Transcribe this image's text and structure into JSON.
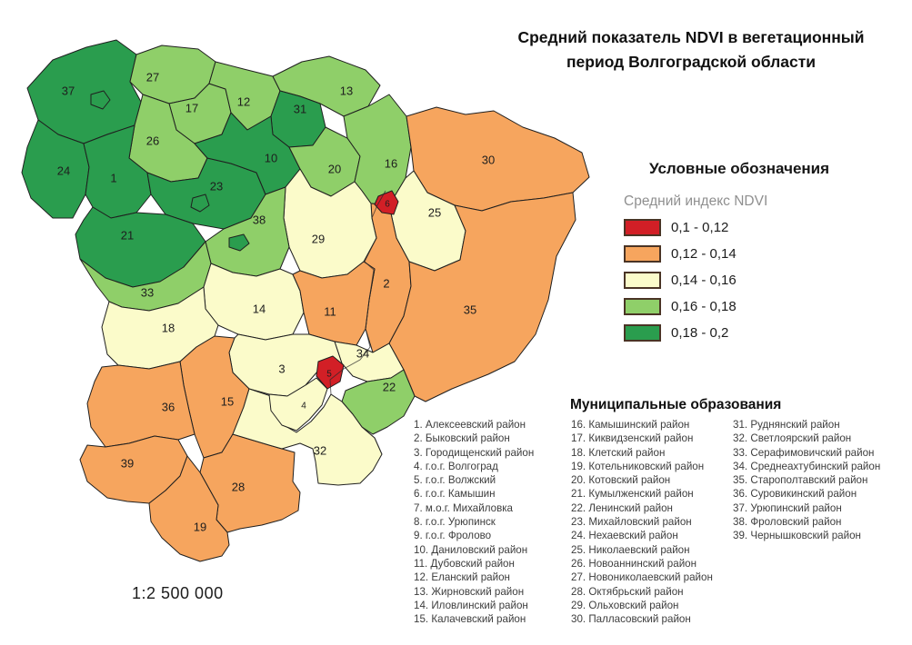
{
  "title": {
    "line1": "Средний показатель NDVI в вегетационный",
    "line2": "период Волгоградской области"
  },
  "legend": {
    "heading": "Условные обозначения",
    "subheading": "Средний индекс NDVI",
    "classes": [
      {
        "label": "0,1 - 0,12",
        "color": "#d21f26"
      },
      {
        "label": "0,12 - 0,14",
        "color": "#f6a55e"
      },
      {
        "label": "0,14 - 0,16",
        "color": "#fbfbca"
      },
      {
        "label": "0,16 - 0,18",
        "color": "#8fcf69"
      },
      {
        "label": "0,18 - 0,2",
        "color": "#2a9d4e"
      }
    ]
  },
  "municipalities": {
    "heading": "Муниципальные образования",
    "columns": [
      [
        1,
        15
      ],
      [
        16,
        30
      ],
      [
        31,
        39
      ]
    ]
  },
  "map": {
    "scale_label": "1:2 500 000",
    "border_color": "#1f1f1f",
    "regions": [
      {
        "num": 1,
        "name": "Алексеевский район",
        "ndvi_class": 4
      },
      {
        "num": 2,
        "name": "Быковский район",
        "ndvi_class": 1
      },
      {
        "num": 3,
        "name": "Городищенский район",
        "ndvi_class": 2
      },
      {
        "num": 4,
        "name": "г.о.г. Волгоград",
        "ndvi_class": 2
      },
      {
        "num": 5,
        "name": "г.о.г. Волжский",
        "ndvi_class": 0
      },
      {
        "num": 6,
        "name": "г.о.г. Камышин",
        "ndvi_class": 0
      },
      {
        "num": 7,
        "name": "м.о.г. Михайловка",
        "ndvi_class": 4
      },
      {
        "num": 8,
        "name": "г.о.г. Урюпинск",
        "ndvi_class": 4
      },
      {
        "num": 9,
        "name": "г.о.г. Фролово",
        "ndvi_class": 4
      },
      {
        "num": 10,
        "name": "Даниловский район",
        "ndvi_class": 4
      },
      {
        "num": 11,
        "name": "Дубовский район",
        "ndvi_class": 1
      },
      {
        "num": 12,
        "name": "Еланский район",
        "ndvi_class": 3
      },
      {
        "num": 13,
        "name": "Жирновский район",
        "ndvi_class": 3
      },
      {
        "num": 14,
        "name": "Иловлинский район",
        "ndvi_class": 2
      },
      {
        "num": 15,
        "name": "Калачевский район",
        "ndvi_class": 1
      },
      {
        "num": 16,
        "name": "Камышинский район",
        "ndvi_class": 3
      },
      {
        "num": 17,
        "name": "Киквидзенский район",
        "ndvi_class": 3
      },
      {
        "num": 18,
        "name": "Клетский район",
        "ndvi_class": 2
      },
      {
        "num": 19,
        "name": "Котельниковский район",
        "ndvi_class": 1
      },
      {
        "num": 20,
        "name": "Котовский район",
        "ndvi_class": 3
      },
      {
        "num": 21,
        "name": "Кумылженский район",
        "ndvi_class": 4
      },
      {
        "num": 22,
        "name": "Ленинский район",
        "ndvi_class": 3
      },
      {
        "num": 23,
        "name": "Михайловский район",
        "ndvi_class": 4
      },
      {
        "num": 24,
        "name": "Нехаевский район",
        "ndvi_class": 4
      },
      {
        "num": 25,
        "name": "Николаевский район",
        "ndvi_class": 2
      },
      {
        "num": 26,
        "name": "Новоаннинский район",
        "ndvi_class": 3
      },
      {
        "num": 27,
        "name": "Новониколаевский район",
        "ndvi_class": 3
      },
      {
        "num": 28,
        "name": "Октябрьский район",
        "ndvi_class": 1
      },
      {
        "num": 29,
        "name": "Ольховский район",
        "ndvi_class": 2
      },
      {
        "num": 30,
        "name": "Палласовский район",
        "ndvi_class": 1
      },
      {
        "num": 31,
        "name": "Руднянский район",
        "ndvi_class": 4
      },
      {
        "num": 32,
        "name": "Светлоярский район",
        "ndvi_class": 2
      },
      {
        "num": 33,
        "name": "Серафимовичский район",
        "ndvi_class": 3
      },
      {
        "num": 34,
        "name": "Среднеахтубинский район",
        "ndvi_class": 2
      },
      {
        "num": 35,
        "name": "Старополтавский район",
        "ndvi_class": 1
      },
      {
        "num": 36,
        "name": "Суровикинский район",
        "ndvi_class": 1
      },
      {
        "num": 37,
        "name": "Урюпинский район",
        "ndvi_class": 4
      },
      {
        "num": 38,
        "name": "Фроловский район",
        "ndvi_class": 3
      },
      {
        "num": 39,
        "name": "Чернышковский район",
        "ndvi_class": 1
      }
    ]
  }
}
